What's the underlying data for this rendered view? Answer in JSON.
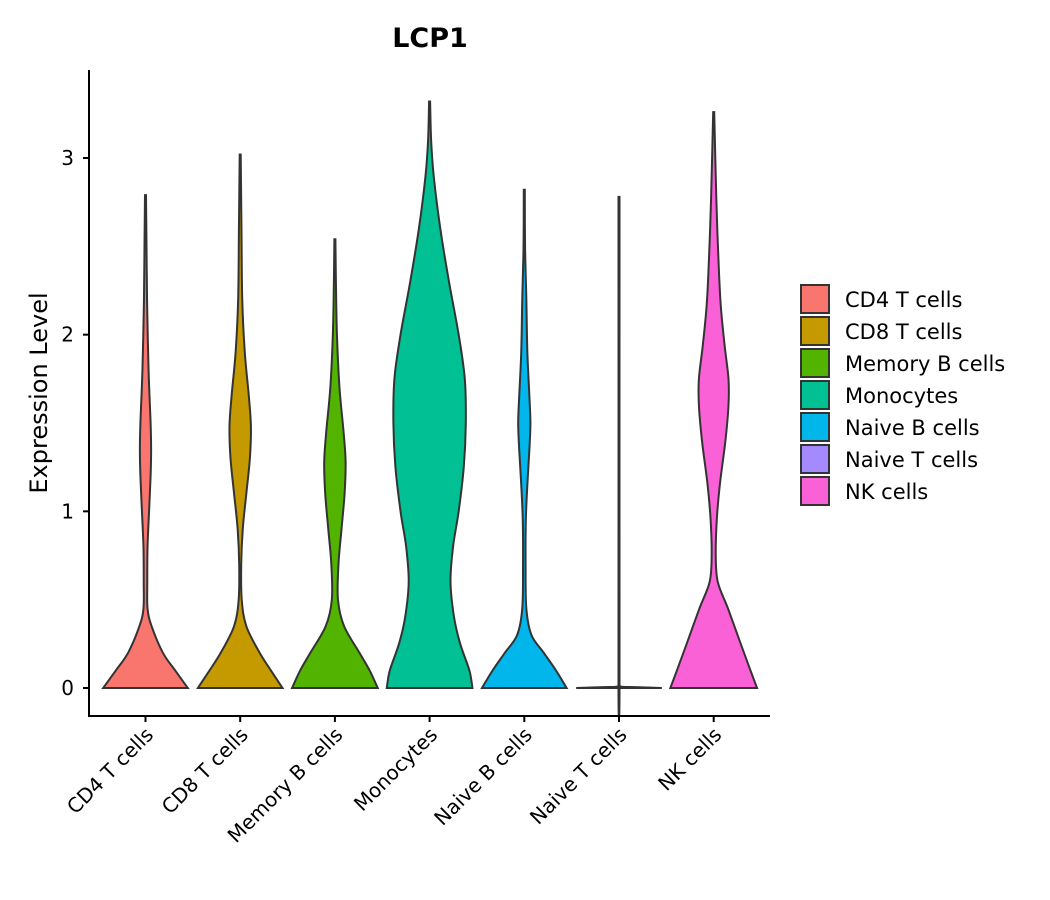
{
  "chart_data": {
    "type": "violin",
    "title": "LCP1",
    "xlabel": "",
    "ylabel": "Expression Level",
    "ylim": [
      -0.16,
      3.5
    ],
    "yticks": [
      0,
      1,
      2,
      3
    ],
    "categories": [
      "CD4 T cells",
      "CD8 T cells",
      "Memory B cells",
      "Monocytes",
      "Naive B cells",
      "Naive T cells",
      "NK cells"
    ],
    "colors": [
      "#F8766D",
      "#C49A00",
      "#53B400",
      "#00C094",
      "#00B6EB",
      "#A58AFF",
      "#FB61D7"
    ],
    "series": [
      {
        "name": "CD4 T cells",
        "min": 0,
        "max": 2.79,
        "density": [
          [
            0.0,
            0.83
          ],
          [
            0.1,
            0.58
          ],
          [
            0.2,
            0.34
          ],
          [
            0.35,
            0.12
          ],
          [
            0.45,
            0.04
          ],
          [
            0.6,
            0.035
          ],
          [
            0.8,
            0.04
          ],
          [
            1.0,
            0.07
          ],
          [
            1.2,
            0.1
          ],
          [
            1.35,
            0.11
          ],
          [
            1.5,
            0.1
          ],
          [
            1.8,
            0.06
          ],
          [
            2.2,
            0.03
          ],
          [
            2.5,
            0.02
          ],
          [
            2.79,
            0.01
          ]
        ]
      },
      {
        "name": "CD8 T cells",
        "min": 0,
        "max": 3.02,
        "density": [
          [
            0.0,
            0.83
          ],
          [
            0.1,
            0.6
          ],
          [
            0.2,
            0.38
          ],
          [
            0.35,
            0.12
          ],
          [
            0.5,
            0.03
          ],
          [
            0.7,
            0.02
          ],
          [
            0.9,
            0.05
          ],
          [
            1.1,
            0.12
          ],
          [
            1.3,
            0.19
          ],
          [
            1.48,
            0.21
          ],
          [
            1.65,
            0.17
          ],
          [
            1.9,
            0.09
          ],
          [
            2.2,
            0.04
          ],
          [
            2.6,
            0.025
          ],
          [
            3.02,
            0.01
          ]
        ]
      },
      {
        "name": "Memory B cells",
        "min": 0,
        "max": 2.54,
        "density": [
          [
            0.0,
            0.84
          ],
          [
            0.1,
            0.68
          ],
          [
            0.2,
            0.48
          ],
          [
            0.35,
            0.18
          ],
          [
            0.5,
            0.06
          ],
          [
            0.7,
            0.07
          ],
          [
            0.9,
            0.13
          ],
          [
            1.1,
            0.19
          ],
          [
            1.28,
            0.21
          ],
          [
            1.45,
            0.17
          ],
          [
            1.7,
            0.09
          ],
          [
            2.0,
            0.04
          ],
          [
            2.3,
            0.02
          ],
          [
            2.54,
            0.01
          ]
        ]
      },
      {
        "name": "Monocytes",
        "min": 0,
        "max": 3.32,
        "density": [
          [
            0.0,
            0.84
          ],
          [
            0.1,
            0.78
          ],
          [
            0.25,
            0.6
          ],
          [
            0.4,
            0.48
          ],
          [
            0.6,
            0.41
          ],
          [
            0.8,
            0.46
          ],
          [
            1.0,
            0.57
          ],
          [
            1.25,
            0.67
          ],
          [
            1.5,
            0.71
          ],
          [
            1.75,
            0.69
          ],
          [
            2.0,
            0.57
          ],
          [
            2.3,
            0.38
          ],
          [
            2.6,
            0.21
          ],
          [
            2.9,
            0.08
          ],
          [
            3.1,
            0.03
          ],
          [
            3.32,
            0.01
          ]
        ]
      },
      {
        "name": "Naive B cells",
        "min": 0,
        "max": 2.82,
        "density": [
          [
            0.0,
            0.83
          ],
          [
            0.1,
            0.62
          ],
          [
            0.2,
            0.38
          ],
          [
            0.3,
            0.14
          ],
          [
            0.45,
            0.04
          ],
          [
            0.7,
            0.025
          ],
          [
            0.95,
            0.03
          ],
          [
            1.15,
            0.06
          ],
          [
            1.35,
            0.1
          ],
          [
            1.5,
            0.12
          ],
          [
            1.65,
            0.1
          ],
          [
            1.9,
            0.06
          ],
          [
            2.2,
            0.04
          ],
          [
            2.5,
            0.015
          ],
          [
            2.82,
            0.01
          ]
        ]
      },
      {
        "name": "Naive T cells",
        "min": 0,
        "max": 2.78,
        "density": [
          [
            0.0,
            0.84
          ],
          [
            0.005,
            0.3
          ],
          [
            0.01,
            0.02
          ],
          [
            0.05,
            0.01
          ],
          [
            2.78,
            0.01
          ]
        ]
      },
      {
        "name": "NK cells",
        "min": 0,
        "max": 3.26,
        "density": [
          [
            0.0,
            0.85
          ],
          [
            0.1,
            0.72
          ],
          [
            0.25,
            0.53
          ],
          [
            0.45,
            0.28
          ],
          [
            0.6,
            0.08
          ],
          [
            0.75,
            0.04
          ],
          [
            0.95,
            0.06
          ],
          [
            1.15,
            0.12
          ],
          [
            1.4,
            0.23
          ],
          [
            1.6,
            0.29
          ],
          [
            1.75,
            0.29
          ],
          [
            1.95,
            0.21
          ],
          [
            2.2,
            0.13
          ],
          [
            2.6,
            0.07
          ],
          [
            2.9,
            0.04
          ],
          [
            3.26,
            0.01
          ]
        ]
      }
    ],
    "legend_position": "right"
  }
}
